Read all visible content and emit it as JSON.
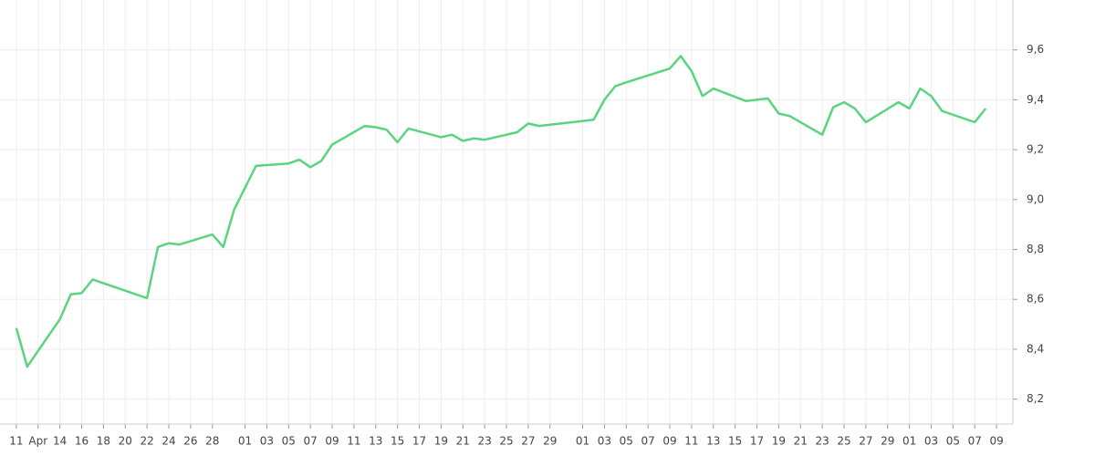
{
  "chart_data": {
    "type": "line",
    "series": [
      {
        "color": "#5bd482",
        "x": [
          0,
          1,
          4,
          5,
          6,
          7,
          12,
          13,
          14,
          15,
          18,
          19,
          20,
          22,
          25,
          26,
          27,
          28,
          29,
          32,
          33,
          34,
          35,
          36,
          39,
          40,
          41,
          42,
          43,
          46,
          47,
          48,
          49,
          53,
          54,
          55,
          56,
          60,
          61,
          62,
          63,
          64,
          67,
          68,
          69,
          70,
          71,
          74,
          75,
          76,
          77,
          78,
          81,
          82,
          83,
          84,
          85,
          88,
          89
        ],
        "values": [
          8.485,
          8.33,
          8.52,
          8.62,
          8.625,
          8.68,
          8.605,
          8.81,
          8.825,
          8.82,
          8.86,
          8.81,
          8.96,
          9.135,
          9.145,
          9.16,
          9.13,
          9.155,
          9.22,
          9.295,
          9.29,
          9.28,
          9.23,
          9.285,
          9.25,
          9.26,
          9.235,
          9.245,
          9.24,
          9.27,
          9.305,
          9.295,
          9.3,
          9.32,
          9.4,
          9.455,
          9.47,
          9.525,
          9.575,
          9.515,
          9.415,
          9.445,
          9.395,
          9.4,
          9.405,
          9.345,
          9.335,
          9.26,
          9.37,
          9.39,
          9.365,
          9.31,
          9.39,
          9.365,
          9.445,
          9.415,
          9.355,
          9.31,
          9.365
        ]
      }
    ],
    "xlim": [
      -1.5,
      91.5
    ],
    "xticks": [
      {
        "value": 0,
        "label": "11"
      },
      {
        "value": 2,
        "label": "Apr"
      },
      {
        "value": 4,
        "label": "14"
      },
      {
        "value": 6,
        "label": "16"
      },
      {
        "value": 8,
        "label": "18"
      },
      {
        "value": 10,
        "label": "20"
      },
      {
        "value": 12,
        "label": "22"
      },
      {
        "value": 14,
        "label": "24"
      },
      {
        "value": 16,
        "label": "26"
      },
      {
        "value": 18,
        "label": "28"
      },
      {
        "value": 21,
        "label": "01"
      },
      {
        "value": 23,
        "label": "03"
      },
      {
        "value": 25,
        "label": "05"
      },
      {
        "value": 27,
        "label": "07"
      },
      {
        "value": 29,
        "label": "09"
      },
      {
        "value": 31,
        "label": "11"
      },
      {
        "value": 33,
        "label": "13"
      },
      {
        "value": 35,
        "label": "15"
      },
      {
        "value": 37,
        "label": "17"
      },
      {
        "value": 39,
        "label": "19"
      },
      {
        "value": 41,
        "label": "21"
      },
      {
        "value": 43,
        "label": "23"
      },
      {
        "value": 45,
        "label": "25"
      },
      {
        "value": 47,
        "label": "27"
      },
      {
        "value": 49,
        "label": "29"
      },
      {
        "value": 52,
        "label": "01"
      },
      {
        "value": 54,
        "label": "03"
      },
      {
        "value": 56,
        "label": "05"
      },
      {
        "value": 58,
        "label": "07"
      },
      {
        "value": 60,
        "label": "09"
      },
      {
        "value": 62,
        "label": "11"
      },
      {
        "value": 64,
        "label": "13"
      },
      {
        "value": 66,
        "label": "15"
      },
      {
        "value": 68,
        "label": "17"
      },
      {
        "value": 70,
        "label": "19"
      },
      {
        "value": 72,
        "label": "21"
      },
      {
        "value": 74,
        "label": "23"
      },
      {
        "value": 76,
        "label": "25"
      },
      {
        "value": 78,
        "label": "27"
      },
      {
        "value": 80,
        "label": "29"
      },
      {
        "value": 82,
        "label": "01"
      },
      {
        "value": 84,
        "label": "03"
      },
      {
        "value": 86,
        "label": "05"
      },
      {
        "value": 88,
        "label": "07"
      },
      {
        "value": 90,
        "label": "09"
      }
    ],
    "ylim": [
      8.1,
      9.8
    ],
    "yticks": [
      {
        "value": 8.2,
        "label": "8,2"
      },
      {
        "value": 8.4,
        "label": "8,4"
      },
      {
        "value": 8.6,
        "label": "8,6"
      },
      {
        "value": 8.8,
        "label": "8,8"
      },
      {
        "value": 9.0,
        "label": "9,0"
      },
      {
        "value": 9.2,
        "label": "9,2"
      },
      {
        "value": 9.4,
        "label": "9,4"
      },
      {
        "value": 9.6,
        "label": "9,6"
      }
    ],
    "grid": true
  }
}
